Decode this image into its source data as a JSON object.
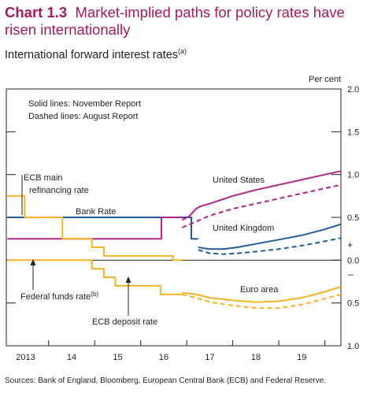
{
  "header": {
    "chart_number": "Chart 1.3",
    "title": "Market-implied paths for policy rates have risen internationally",
    "subtitle": "International forward interest rates",
    "subtitle_note": "(a)"
  },
  "footer": {
    "sources": "Sources: Bank of England, Bloomberg, European Central Bank (ECB) and Federal Reserve."
  },
  "colors": {
    "title": "#a6195c",
    "bank_rate": "#1f5c99",
    "us": "#b4238b",
    "euro": "#f5b324"
  },
  "chart_data": {
    "type": "line",
    "x_domain": [
      2012.58,
      2019.85
    ],
    "ylim": [
      -1.0,
      2.0
    ],
    "y_axis_unit": "Per cent",
    "y_ticks": [
      {
        "value": 2.0,
        "label": "2.0"
      },
      {
        "value": 1.5,
        "label": "1.5"
      },
      {
        "value": 1.0,
        "label": "1.0"
      },
      {
        "value": 0.5,
        "label": "0.5"
      },
      {
        "value": 0.0,
        "label": "0.0"
      },
      {
        "value": -0.5,
        "label": "0.5"
      },
      {
        "value": -1.0,
        "label": "1.0"
      }
    ],
    "sign_plus": "+",
    "sign_minus": "–",
    "x_ticks": [
      {
        "value": 2013.0,
        "label": "2013"
      },
      {
        "value": 2014.0,
        "label": "14"
      },
      {
        "value": 2015.0,
        "label": "15"
      },
      {
        "value": 2016.0,
        "label": "16"
      },
      {
        "value": 2017.0,
        "label": "17"
      },
      {
        "value": 2018.0,
        "label": "18"
      },
      {
        "value": 2019.0,
        "label": "19"
      }
    ],
    "legend_note": {
      "solid": "Solid lines:  November Report",
      "dashed": "Dashed lines:  August Report"
    },
    "annotations": {
      "ecb_main_1": "ECB main",
      "ecb_main_2": "refinancing rate",
      "bank_rate": "Bank Rate",
      "united_states": "United States",
      "united_kingdom": "United Kingdom",
      "euro_area": "Euro area",
      "fed_funds": "Federal funds rate",
      "fed_funds_note": "(b)",
      "ecb_deposit": "ECB deposit rate"
    },
    "series": [
      {
        "name": "Bank Rate",
        "color": "#1f5c99",
        "dash": false,
        "shape": "step",
        "x": [
          2012.6,
          2016.6,
          2016.6,
          2016.75
        ],
        "y": [
          0.5,
          0.5,
          0.25,
          0.25
        ]
      },
      {
        "name": "Federal funds rate",
        "color": "#b4238b",
        "dash": false,
        "shape": "step",
        "x": [
          2012.6,
          2015.95,
          2015.95,
          2016.4
        ],
        "y": [
          0.25,
          0.25,
          0.5,
          0.5
        ]
      },
      {
        "name": "ECB main refinancing rate",
        "color": "#f5b324",
        "dash": false,
        "shape": "step",
        "x": [
          2012.6,
          2012.98,
          2012.98,
          2013.8,
          2013.8,
          2014.44,
          2014.44,
          2014.7,
          2014.7,
          2016.2,
          2016.2,
          2016.4
        ],
        "y": [
          0.75,
          0.75,
          0.5,
          0.5,
          0.25,
          0.25,
          0.15,
          0.15,
          0.05,
          0.05,
          0.0,
          0.0
        ]
      },
      {
        "name": "ECB deposit rate",
        "color": "#f5b324",
        "dash": false,
        "shape": "step",
        "x": [
          2012.6,
          2014.44,
          2014.44,
          2014.7,
          2014.7,
          2014.95,
          2014.95,
          2015.93,
          2015.93,
          2016.2,
          2016.2,
          2016.4
        ],
        "y": [
          0.0,
          0.0,
          -0.1,
          -0.1,
          -0.2,
          -0.2,
          -0.3,
          -0.3,
          -0.4,
          -0.4,
          -0.4,
          -0.4
        ]
      },
      {
        "name": "United States",
        "color": "#b4238b",
        "dash": false,
        "x": [
          2016.4,
          2016.55,
          2016.7,
          2016.8,
          2017.0,
          2017.5,
          2018.0,
          2018.5,
          2019.0,
          2019.5,
          2019.85
        ],
        "y": [
          0.47,
          0.51,
          0.6,
          0.63,
          0.66,
          0.75,
          0.82,
          0.88,
          0.94,
          1.0,
          1.04
        ]
      },
      {
        "name": "United States",
        "color": "#b4238b",
        "dash": true,
        "x": [
          2016.4,
          2016.7,
          2017.0,
          2017.5,
          2018.0,
          2018.5,
          2019.0,
          2019.5,
          2019.85
        ],
        "y": [
          0.38,
          0.45,
          0.52,
          0.6,
          0.66,
          0.72,
          0.78,
          0.84,
          0.88
        ]
      },
      {
        "name": "United Kingdom",
        "color": "#1f5c99",
        "dash": false,
        "x": [
          2016.75,
          2017.0,
          2017.3,
          2017.6,
          2018.0,
          2018.5,
          2019.0,
          2019.5,
          2019.85
        ],
        "y": [
          0.15,
          0.13,
          0.13,
          0.15,
          0.19,
          0.24,
          0.29,
          0.36,
          0.42
        ]
      },
      {
        "name": "United Kingdom",
        "color": "#1f5c99",
        "dash": true,
        "x": [
          2016.75,
          2017.0,
          2017.3,
          2017.6,
          2018.0,
          2018.5,
          2019.0,
          2019.5,
          2019.85
        ],
        "y": [
          0.12,
          0.08,
          0.07,
          0.08,
          0.1,
          0.13,
          0.17,
          0.22,
          0.26
        ]
      },
      {
        "name": "Euro area",
        "color": "#f5b324",
        "dash": false,
        "x": [
          2016.4,
          2016.7,
          2017.0,
          2017.5,
          2018.0,
          2018.5,
          2019.0,
          2019.5,
          2019.85
        ],
        "y": [
          -0.38,
          -0.4,
          -0.44,
          -0.47,
          -0.49,
          -0.48,
          -0.44,
          -0.37,
          -0.31
        ]
      },
      {
        "name": "Euro area",
        "color": "#f5b324",
        "dash": true,
        "x": [
          2016.4,
          2016.7,
          2017.0,
          2017.5,
          2018.0,
          2018.5,
          2019.0,
          2019.5,
          2019.85
        ],
        "y": [
          -0.4,
          -0.44,
          -0.49,
          -0.53,
          -0.56,
          -0.56,
          -0.52,
          -0.45,
          -0.4
        ]
      }
    ]
  }
}
